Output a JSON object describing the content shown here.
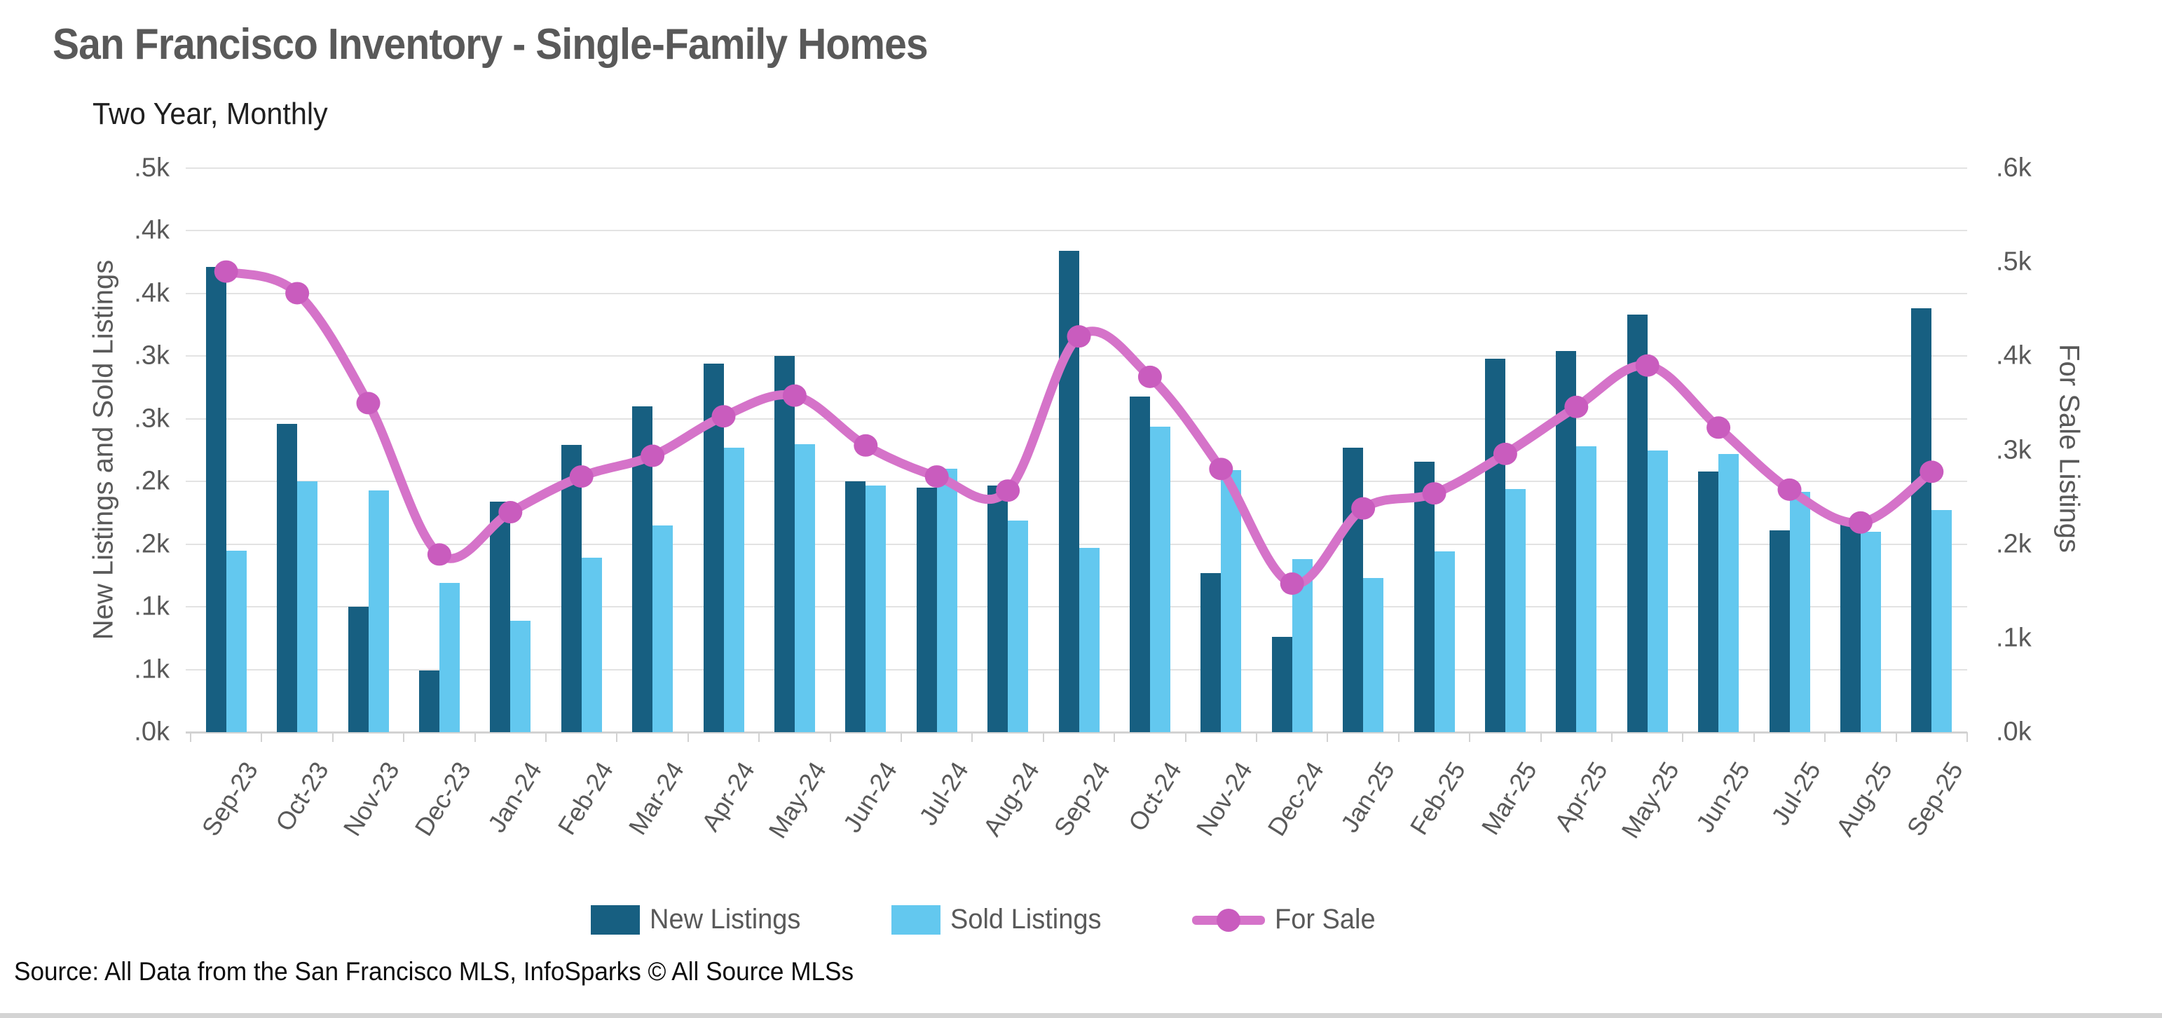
{
  "title": "San Francisco Inventory - Single-Family Homes",
  "subtitle": "Two Year, Monthly",
  "source": "Source: All Data from the San Francisco MLS, InfoSparks © All Source MLSs",
  "left_axis": {
    "title": "New Listings and Sold Listings",
    "tick_labels": [
      ".5k",
      ".4k",
      ".4k",
      ".3k",
      ".3k",
      ".2k",
      ".2k",
      ".1k",
      ".1k",
      ".0k"
    ],
    "tick_values": [
      450,
      400,
      350,
      300,
      250,
      200,
      150,
      100,
      50,
      0
    ]
  },
  "right_axis": {
    "title": "For Sale Listings",
    "tick_labels": [
      ".6k",
      ".5k",
      ".4k",
      ".3k",
      ".2k",
      ".1k",
      ".0k"
    ],
    "tick_values": [
      600,
      500,
      400,
      300,
      200,
      100,
      0
    ]
  },
  "legend": {
    "new_listings": "New Listings",
    "sold_listings": "Sold Listings",
    "for_sale": "For Sale"
  },
  "colors": {
    "new_listings": "#175f81",
    "sold_listings": "#63c8ef",
    "for_sale_line": "#d573c9",
    "for_sale_marker": "#c95cbe",
    "gridline": "#e3e3e3",
    "axis_line": "#d2d2d2",
    "text_gray": "#595959"
  },
  "chart_data": {
    "type": "bar+line",
    "title": "San Francisco Inventory - Single-Family Homes",
    "subtitle": "Two Year, Monthly",
    "categories": [
      "Sep-23",
      "Oct-23",
      "Nov-23",
      "Dec-23",
      "Jan-24",
      "Feb-24",
      "Mar-24",
      "Apr-24",
      "May-24",
      "Jun-24",
      "Jul-24",
      "Aug-24",
      "Sep-24",
      "Oct-24",
      "Nov-24",
      "Dec-24",
      "Jan-25",
      "Feb-25",
      "Mar-25",
      "Apr-25",
      "May-25",
      "Jun-25",
      "Jul-25",
      "Aug-25",
      "Sep-25"
    ],
    "series": [
      {
        "name": "New Listings",
        "type": "bar",
        "axis": "left",
        "color": "#175f81",
        "values": [
          371,
          246,
          100,
          49,
          184,
          229,
          260,
          294,
          300,
          200,
          195,
          197,
          384,
          268,
          127,
          76,
          227,
          216,
          298,
          304,
          333,
          208,
          161,
          170,
          338
        ]
      },
      {
        "name": "Sold Listings",
        "type": "bar",
        "axis": "left",
        "color": "#63c8ef",
        "values": [
          145,
          200,
          193,
          119,
          89,
          139,
          165,
          227,
          230,
          197,
          210,
          169,
          147,
          244,
          209,
          138,
          123,
          144,
          194,
          228,
          225,
          222,
          192,
          160,
          177
        ]
      },
      {
        "name": "For Sale",
        "type": "line",
        "axis": "right",
        "color": "#d573c9",
        "marker_color": "#c95cbe",
        "values": [
          490,
          467,
          350,
          189,
          234,
          272,
          294,
          336,
          358,
          305,
          272,
          257,
          421,
          378,
          280,
          158,
          238,
          254,
          296,
          346,
          390,
          324,
          258,
          223,
          277
        ]
      }
    ],
    "left_ylim": [
      0,
      450
    ],
    "right_ylim": [
      0,
      600
    ],
    "ylabel_left": "New Listings and Sold Listings",
    "ylabel_right": "For Sale Listings",
    "grid": "horizontal",
    "legend_position": "bottom"
  }
}
